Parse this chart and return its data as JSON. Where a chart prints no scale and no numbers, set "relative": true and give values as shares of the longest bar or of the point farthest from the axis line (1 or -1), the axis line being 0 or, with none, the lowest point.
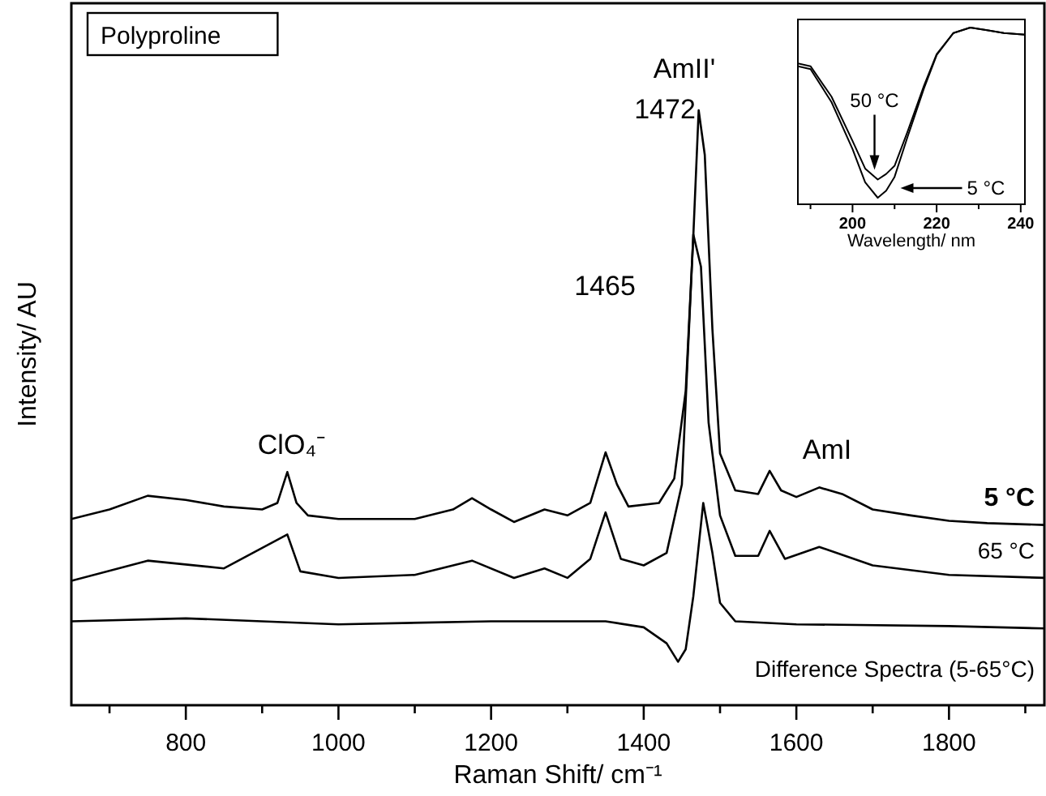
{
  "chart_data": [
    {
      "type": "line",
      "relative": true,
      "xlabel": "Raman Shift/ cm⁻¹",
      "ylabel": "Intensity/ AU",
      "grid": false,
      "xlim": [
        650,
        1925
      ],
      "xticks": [
        {
          "value": 700,
          "label": null
        },
        800,
        {
          "value": 900,
          "label": null
        },
        1000,
        {
          "value": 1100,
          "label": null
        },
        1200,
        {
          "value": 1300,
          "label": null
        },
        1400,
        {
          "value": 1500,
          "label": null
        },
        1600,
        {
          "value": 1700,
          "label": null
        },
        1800,
        {
          "value": 1900,
          "label": null
        }
      ],
      "annotations": [
        "Polyproline",
        "AmII'",
        "1472",
        "1465",
        "ClO₄⁻",
        "AmI"
      ],
      "series": [
        {
          "name": "5 °C",
          "color": "#000000",
          "x": [
            650,
            700,
            750,
            800,
            850,
            900,
            920,
            933,
            945,
            960,
            1000,
            1100,
            1150,
            1175,
            1200,
            1230,
            1270,
            1300,
            1330,
            1350,
            1365,
            1380,
            1420,
            1440,
            1455,
            1465,
            1472,
            1480,
            1490,
            1500,
            1520,
            1550,
            1565,
            1580,
            1600,
            1630,
            1660,
            1700,
            1750,
            1800,
            1850,
            1925
          ],
          "values": [
            0.313,
            0.329,
            0.352,
            0.345,
            0.334,
            0.329,
            0.34,
            0.392,
            0.34,
            0.319,
            0.313,
            0.313,
            0.329,
            0.348,
            0.329,
            0.308,
            0.329,
            0.319,
            0.34,
            0.425,
            0.371,
            0.334,
            0.34,
            0.381,
            0.528,
            0.789,
            1,
            0.925,
            0.632,
            0.423,
            0.361,
            0.355,
            0.394,
            0.361,
            0.35,
            0.366,
            0.355,
            0.329,
            0.319,
            0.31,
            0.306,
            0.303
          ]
        },
        {
          "name": "65 °C",
          "color": "#000000",
          "x": [
            650,
            750,
            850,
            933,
            950,
            1000,
            1100,
            1175,
            1230,
            1270,
            1300,
            1330,
            1350,
            1370,
            1400,
            1430,
            1450,
            1465,
            1475,
            1485,
            1500,
            1520,
            1550,
            1565,
            1585,
            1630,
            1700,
            1800,
            1925
          ],
          "values": [
            0.209,
            0.243,
            0.23,
            0.287,
            0.225,
            0.214,
            0.219,
            0.243,
            0.214,
            0.23,
            0.214,
            0.246,
            0.324,
            0.246,
            0.235,
            0.256,
            0.371,
            0.791,
            0.737,
            0.475,
            0.319,
            0.251,
            0.251,
            0.293,
            0.246,
            0.266,
            0.235,
            0.219,
            0.214
          ]
        },
        {
          "name": "Difference Spectra (5-65°C)",
          "color": "#000000",
          "x": [
            650,
            800,
            1000,
            1200,
            1350,
            1400,
            1430,
            1445,
            1455,
            1465,
            1478,
            1490,
            1500,
            1520,
            1600,
            1800,
            1925
          ],
          "values": [
            0.141,
            0.146,
            0.136,
            0.141,
            0.141,
            0.131,
            0.104,
            0.073,
            0.094,
            0.183,
            0.34,
            0.256,
            0.172,
            0.141,
            0.136,
            0.133,
            0.129
          ]
        }
      ]
    },
    {
      "type": "line",
      "relative": true,
      "xlabel": "Wavelength/ nm",
      "grid": false,
      "xlim": [
        187,
        241
      ],
      "xticks": [
        {
          "value": 190,
          "label": null
        },
        200,
        {
          "value": 210,
          "label": null
        },
        220,
        {
          "value": 230,
          "label": null
        },
        240
      ],
      "series": [
        {
          "name": "5 °C",
          "color": "#000000",
          "x": [
            187,
            190,
            195,
            200,
            203,
            206,
            208,
            210,
            213,
            217,
            220,
            224,
            228,
            232,
            236,
            241
          ],
          "values": [
            0.773,
            0.756,
            0.562,
            0.286,
            0.091,
            0,
            0.042,
            0.123,
            0.351,
            0.643,
            0.838,
            0.968,
            1,
            0.984,
            0.968,
            0.958
          ]
        },
        {
          "name": "50 °C",
          "color": "#000000",
          "x": [
            187,
            190,
            195,
            200,
            203,
            206,
            208,
            210,
            213,
            217,
            220,
            224,
            228,
            232,
            236,
            241
          ],
          "values": [
            0.789,
            0.773,
            0.594,
            0.334,
            0.172,
            0.107,
            0.14,
            0.188,
            0.383,
            0.659,
            0.844,
            0.968,
            1,
            0.984,
            0.968,
            0.958
          ]
        }
      ]
    }
  ]
}
